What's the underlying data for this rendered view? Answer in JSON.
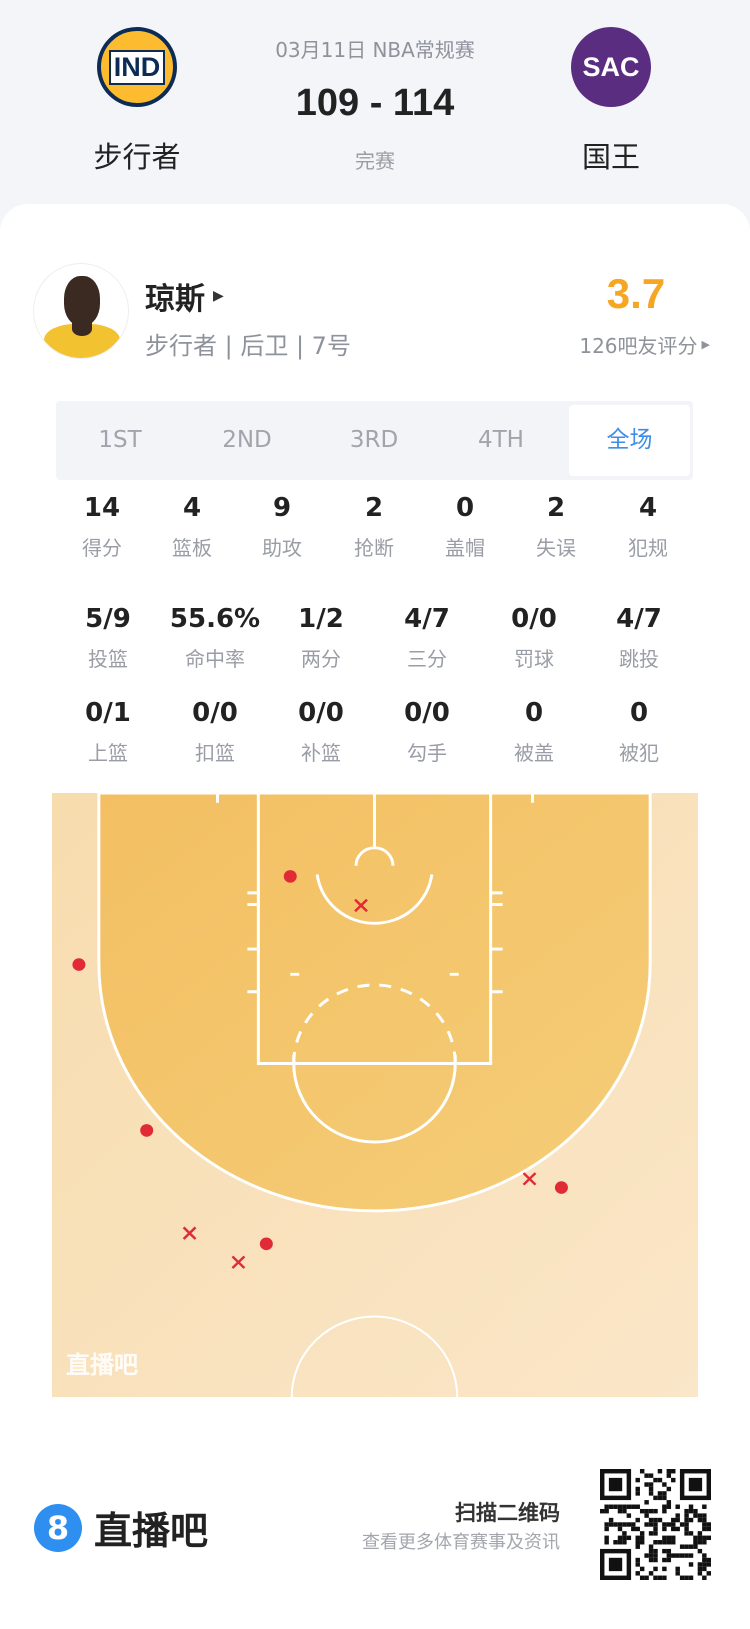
{
  "header": {
    "date_league": "03月11日 NBA常规赛",
    "score": "109 - 114",
    "status": "完赛",
    "home": {
      "abbr": "IND",
      "name": "步行者",
      "color": "#0c2c56",
      "accent": "#fdbb30"
    },
    "away": {
      "abbr": "SAC",
      "name": "国王",
      "color": "#5a2d81",
      "accent": "#63727a"
    }
  },
  "player": {
    "name": "琼斯",
    "info": "步行者 | 后卫 | 7号",
    "rating": "3.7",
    "rating_label": "126吧友评分",
    "rating_color": "#f5a623"
  },
  "tabs": [
    {
      "label": "1ST"
    },
    {
      "label": "2ND"
    },
    {
      "label": "3RD"
    },
    {
      "label": "4TH"
    },
    {
      "label": "全场",
      "selected": true
    }
  ],
  "stats_row1": [
    {
      "value": "14",
      "label": "得分"
    },
    {
      "value": "4",
      "label": "篮板"
    },
    {
      "value": "9",
      "label": "助攻"
    },
    {
      "value": "2",
      "label": "抢断"
    },
    {
      "value": "0",
      "label": "盖帽"
    },
    {
      "value": "2",
      "label": "失误"
    },
    {
      "value": "4",
      "label": "犯规"
    }
  ],
  "stats_row2": [
    {
      "value": "5/9",
      "label": "投篮"
    },
    {
      "value": "55.6%",
      "label": "命中率"
    },
    {
      "value": "1/2",
      "label": "两分"
    },
    {
      "value": "4/7",
      "label": "三分"
    },
    {
      "value": "0/0",
      "label": "罚球"
    },
    {
      "value": "4/7",
      "label": "跳投"
    }
  ],
  "stats_row3": [
    {
      "value": "0/1",
      "label": "上篮"
    },
    {
      "value": "0/0",
      "label": "扣篮"
    },
    {
      "value": "0/0",
      "label": "补篮"
    },
    {
      "value": "0/0",
      "label": "勾手"
    },
    {
      "value": "0",
      "label": "被盖"
    },
    {
      "value": "0",
      "label": "被犯"
    }
  ],
  "shot_chart": {
    "watermark": "直播吧",
    "made_color": "#e02a35",
    "shots": [
      {
        "result": "made",
        "zone": "paint-left"
      },
      {
        "result": "made",
        "zone": "left-corner-3"
      },
      {
        "result": "made",
        "zone": "left-wing-3"
      },
      {
        "result": "made",
        "zone": "left-top-3"
      },
      {
        "result": "made",
        "zone": "right-wing-3"
      },
      {
        "result": "miss",
        "zone": "restricted-area"
      },
      {
        "result": "miss",
        "zone": "left-wing-3"
      },
      {
        "result": "miss",
        "zone": "left-top-3"
      },
      {
        "result": "miss",
        "zone": "right-wing-3"
      }
    ]
  },
  "footer": {
    "brand": "直播吧",
    "brand_badge": "8",
    "scan_title": "扫描二维码",
    "scan_sub": "查看更多体育赛事及资讯"
  }
}
